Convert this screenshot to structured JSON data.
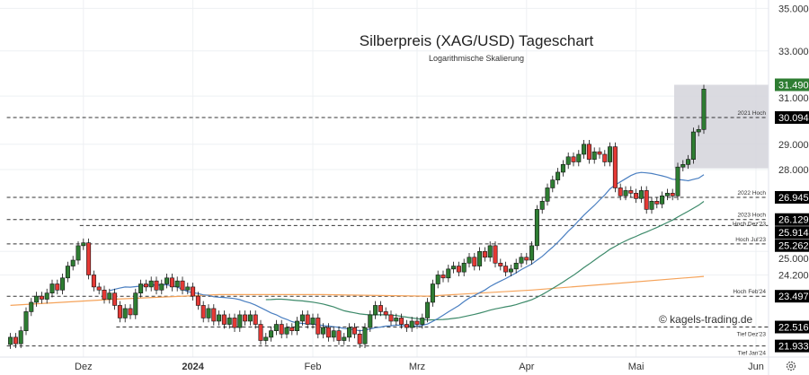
{
  "chart_data": {
    "type": "candlestick",
    "title": "Silberpreis (XAG/USD) Tageschart",
    "subtitle": "Logarithmische Skalierung",
    "watermark": "© kagels-trading.de",
    "y_scale": "log",
    "ylim": [
      21.6,
      35.3
    ],
    "y_ticks": [
      "35.000",
      "33.000",
      "31.000",
      "29.000",
      "28.000",
      "25.000",
      "24.200"
    ],
    "y_tick_values": [
      35,
      33,
      31,
      29,
      28,
      25,
      24.2
    ],
    "x_ticks": [
      {
        "label": "Dez",
        "index": 14
      },
      {
        "label": "2024",
        "index": 35
      },
      {
        "label": "Feb",
        "index": 58
      },
      {
        "label": "Mrz",
        "index": 78
      },
      {
        "label": "Apr",
        "index": 99
      },
      {
        "label": "Mai",
        "index": 120
      },
      {
        "label": "Jun",
        "index": 143
      }
    ],
    "closes": [
      22.2,
      22.0,
      22.4,
      23.0,
      23.3,
      23.5,
      23.4,
      23.6,
      23.9,
      23.7,
      24.1,
      24.5,
      24.7,
      25.2,
      25.3,
      24.2,
      23.8,
      23.7,
      23.4,
      23.6,
      23.2,
      22.8,
      23.1,
      22.9,
      23.6,
      23.9,
      23.8,
      24.0,
      23.7,
      23.9,
      24.1,
      23.8,
      24.0,
      23.7,
      23.8,
      23.5,
      23.2,
      22.8,
      23.1,
      22.7,
      22.9,
      22.6,
      22.8,
      22.5,
      22.9,
      22.7,
      22.9,
      22.6,
      22.1,
      22.2,
      22.4,
      22.6,
      22.3,
      22.5,
      22.4,
      22.7,
      22.9,
      22.6,
      22.8,
      22.3,
      22.5,
      22.2,
      22.4,
      22.1,
      22.2,
      22.5,
      22.3,
      22.0,
      22.5,
      22.9,
      23.2,
      23.0,
      22.9,
      22.7,
      22.8,
      22.6,
      22.5,
      22.7,
      22.6,
      22.8,
      23.3,
      23.9,
      24.2,
      24.1,
      24.4,
      24.5,
      24.3,
      24.6,
      24.8,
      24.5,
      25.0,
      24.8,
      25.2,
      24.6,
      24.5,
      24.3,
      24.4,
      24.6,
      24.8,
      24.7,
      25.2,
      26.5,
      26.8,
      27.3,
      27.6,
      27.9,
      28.2,
      28.5,
      28.3,
      28.6,
      29.0,
      28.4,
      28.7,
      28.6,
      28.3,
      28.9,
      27.3,
      27.0,
      27.2,
      27.1,
      26.9,
      27.2,
      26.5,
      26.8,
      26.7,
      27.0,
      27.1,
      27.0,
      28.1,
      28.2,
      28.4,
      29.5,
      29.6,
      31.3
    ],
    "last_price": "31.490",
    "last_price_value": 31.49,
    "ma_long": [
      [
        0,
        23.2
      ],
      [
        20,
        23.4
      ],
      [
        40,
        23.55
      ],
      [
        60,
        23.55
      ],
      [
        80,
        23.5
      ],
      [
        100,
        23.7
      ],
      [
        115,
        23.9
      ],
      [
        133,
        24.15
      ]
    ],
    "ma_periods": [
      20,
      50
    ],
    "highlight_range": {
      "from_index": 128,
      "low": 28.05,
      "high": 31.49
    },
    "levels": [
      {
        "label": "2021 Hoch",
        "value": 30.094,
        "text": "30.094",
        "start_index": 0
      },
      {
        "label": "2022 Hoch",
        "value": 26.945,
        "text": "26.945",
        "start_index": 0
      },
      {
        "label": "2023 Hoch",
        "value": 26.129,
        "text": "26.129",
        "start_index": 0
      },
      {
        "label": "Hoch Dez'23",
        "value": 25.914,
        "text": "25.914",
        "start_index": 14
      },
      {
        "label": "Hoch Jul'23",
        "value": 25.262,
        "text": "25.262",
        "start_index": 0
      },
      {
        "label": "Hoch Feb'24",
        "value": 23.497,
        "text": "23.497",
        "start_index": 0
      },
      {
        "label": "Tief Dez'23",
        "value": 22.516,
        "text": "22.516",
        "start_index": 21
      },
      {
        "label": "Tief Jan'24",
        "value": 21.933,
        "text": "21.933",
        "start_index": 0
      }
    ],
    "colors": {
      "up": "#2e7d32",
      "down": "#e53935",
      "ma_short": "#4a7fc1",
      "ma_mid": "#3d8a6a",
      "ma_long": "#f5a35a",
      "highlight": "#d3d3da"
    }
  },
  "toolbar": {
    "settings_icon": "gear-icon"
  }
}
